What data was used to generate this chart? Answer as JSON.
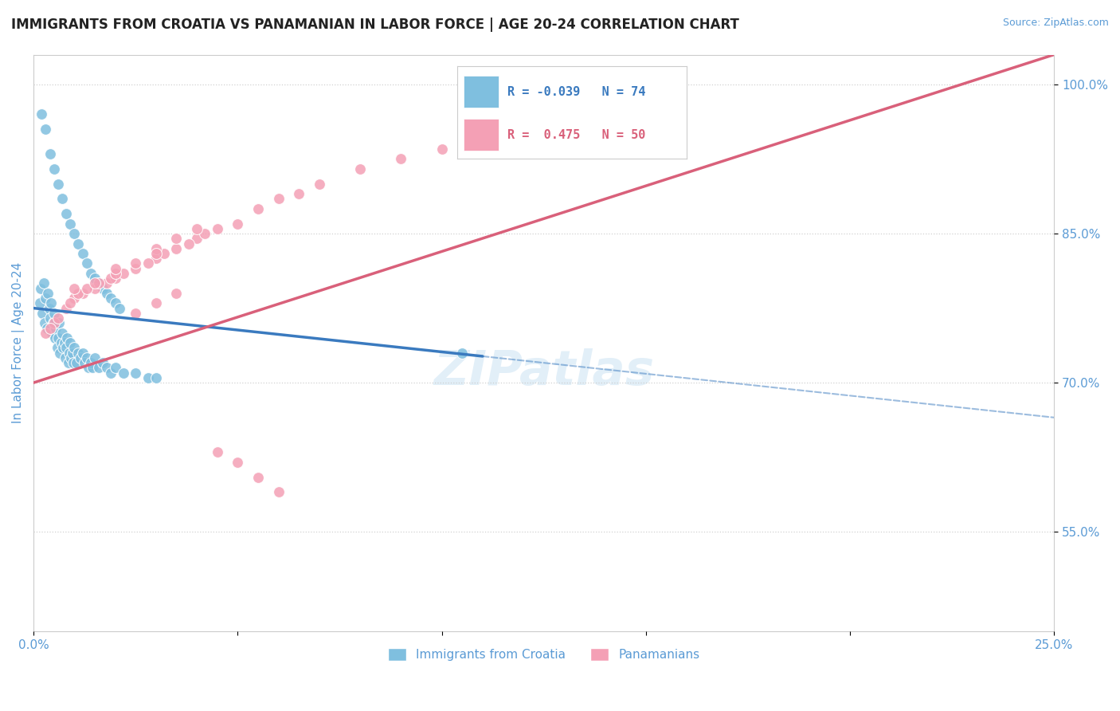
{
  "title": "IMMIGRANTS FROM CROATIA VS PANAMANIAN IN LABOR FORCE | AGE 20-24 CORRELATION CHART",
  "source_text": "Source: ZipAtlas.com",
  "ylabel": "In Labor Force | Age 20-24",
  "xlim": [
    0.0,
    25.0
  ],
  "ylim": [
    45.0,
    103.0
  ],
  "yticks": [
    55.0,
    70.0,
    85.0,
    100.0
  ],
  "xtick_labels": [
    "0.0%",
    "",
    "",
    "",
    "",
    "25.0%"
  ],
  "ytick_labels": [
    "55.0%",
    "70.0%",
    "85.0%",
    "100.0%"
  ],
  "legend_r_blue": "-0.039",
  "legend_n_blue": "74",
  "legend_r_pink": "0.475",
  "legend_n_pink": "50",
  "legend_label_blue": "Immigrants from Croatia",
  "legend_label_pink": "Panamanians",
  "blue_color": "#7fbfdf",
  "pink_color": "#f4a0b5",
  "blue_line_color": "#3a7abf",
  "pink_line_color": "#d9607a",
  "axis_color": "#5b9bd5",
  "watermark": "ZIPatlas",
  "blue_dots_x": [
    0.15,
    0.18,
    0.22,
    0.25,
    0.28,
    0.3,
    0.32,
    0.35,
    0.38,
    0.4,
    0.42,
    0.45,
    0.48,
    0.5,
    0.52,
    0.55,
    0.58,
    0.6,
    0.62,
    0.65,
    0.68,
    0.7,
    0.72,
    0.75,
    0.78,
    0.8,
    0.82,
    0.85,
    0.88,
    0.9,
    0.92,
    0.95,
    0.98,
    1.0,
    1.05,
    1.1,
    1.15,
    1.2,
    1.25,
    1.3,
    1.35,
    1.4,
    1.45,
    1.5,
    1.6,
    1.7,
    1.8,
    1.9,
    2.0,
    2.2,
    2.5,
    2.8,
    3.0,
    0.2,
    0.3,
    0.4,
    0.5,
    0.6,
    0.7,
    0.8,
    0.9,
    1.0,
    1.1,
    1.2,
    1.3,
    1.4,
    1.5,
    1.6,
    1.7,
    1.8,
    1.9,
    2.0,
    2.1,
    10.5
  ],
  "blue_dots_y": [
    78.0,
    79.5,
    77.0,
    80.0,
    76.0,
    78.5,
    75.5,
    79.0,
    77.5,
    76.5,
    78.0,
    75.0,
    76.0,
    77.0,
    74.5,
    75.5,
    73.5,
    74.5,
    76.0,
    73.0,
    74.0,
    75.0,
    73.5,
    74.0,
    72.5,
    73.5,
    74.5,
    72.0,
    73.0,
    74.0,
    72.5,
    73.0,
    72.0,
    73.5,
    72.0,
    73.0,
    72.5,
    73.0,
    72.0,
    72.5,
    71.5,
    72.0,
    71.5,
    72.5,
    71.5,
    72.0,
    71.5,
    71.0,
    71.5,
    71.0,
    71.0,
    70.5,
    70.5,
    97.0,
    95.5,
    93.0,
    91.5,
    90.0,
    88.5,
    87.0,
    86.0,
    85.0,
    84.0,
    83.0,
    82.0,
    81.0,
    80.5,
    80.0,
    79.5,
    79.0,
    78.5,
    78.0,
    77.5,
    73.0
  ],
  "pink_dots_x": [
    0.3,
    0.5,
    0.8,
    1.0,
    1.2,
    1.5,
    1.8,
    2.0,
    2.5,
    3.0,
    3.5,
    4.0,
    4.5,
    5.0,
    5.5,
    6.0,
    6.5,
    7.0,
    8.0,
    9.0,
    10.0,
    11.0,
    0.4,
    0.6,
    0.9,
    1.1,
    1.3,
    1.6,
    1.9,
    2.2,
    2.8,
    3.2,
    3.8,
    4.2,
    2.5,
    3.0,
    3.5,
    1.5,
    2.0,
    2.5,
    3.0,
    3.5,
    4.0,
    4.5,
    5.0,
    5.5,
    6.0,
    1.0,
    2.0,
    3.0
  ],
  "pink_dots_y": [
    75.0,
    76.0,
    77.5,
    78.5,
    79.0,
    79.5,
    80.0,
    80.5,
    81.5,
    82.5,
    83.5,
    84.5,
    85.5,
    86.0,
    87.5,
    88.5,
    89.0,
    90.0,
    91.5,
    92.5,
    93.5,
    94.5,
    75.5,
    76.5,
    78.0,
    79.0,
    79.5,
    80.0,
    80.5,
    81.0,
    82.0,
    83.0,
    84.0,
    85.0,
    77.0,
    78.0,
    79.0,
    80.0,
    81.0,
    82.0,
    83.5,
    84.5,
    85.5,
    63.0,
    62.0,
    60.5,
    59.0,
    79.5,
    81.5,
    83.0
  ],
  "blue_trend_x0": 0.0,
  "blue_trend_y0": 77.5,
  "blue_trend_x1": 25.0,
  "blue_trend_y1": 66.5,
  "blue_solid_x1": 11.0,
  "pink_trend_x0": 0.0,
  "pink_trend_y0": 70.0,
  "pink_trend_x1": 25.0,
  "pink_trend_y1": 103.0
}
